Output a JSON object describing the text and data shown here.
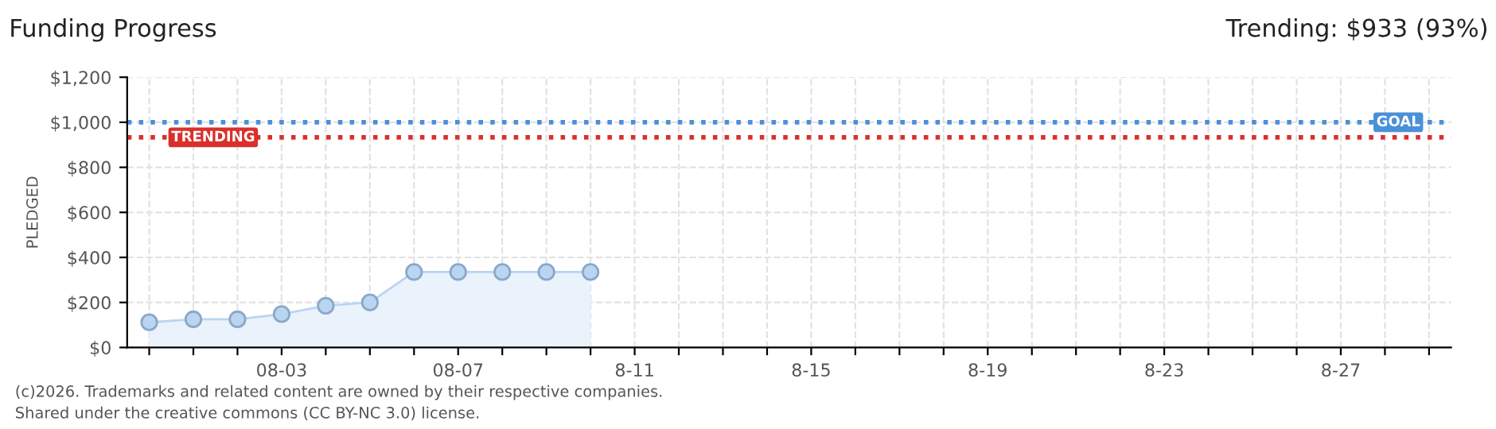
{
  "chart_data": {
    "type": "area",
    "title": "Funding Progress",
    "subtitle": "Trending: $933 (93%)",
    "ylabel": "PLEDGED",
    "categories": [
      null,
      null,
      null,
      "08-03",
      null,
      null,
      null,
      "08-07",
      null,
      null,
      null,
      "8-11",
      null,
      null,
      null,
      "8-15",
      null,
      null,
      null,
      "8-19",
      null,
      null,
      null,
      "8-23",
      null,
      null,
      null,
      "8-27",
      null,
      null
    ],
    "series": [
      {
        "color": "#b9d5f2",
        "values": [
          112,
          125,
          125,
          148,
          185,
          200,
          335,
          335,
          335,
          335,
          335,
          null,
          null,
          null,
          null,
          null,
          null,
          null,
          null,
          null,
          null,
          null,
          null,
          null,
          null,
          null,
          null,
          null,
          null,
          null
        ]
      }
    ],
    "ylim": [
      0,
      1200
    ],
    "yticks": [
      {
        "value": 0,
        "label": "$0"
      },
      {
        "value": 200,
        "label": "$200"
      },
      {
        "value": 400,
        "label": "$400"
      },
      {
        "value": 600,
        "label": "$600"
      },
      {
        "value": 800,
        "label": "$800"
      },
      {
        "value": 1000,
        "label": "$1,000"
      },
      {
        "value": 1200,
        "label": "$1,200"
      }
    ],
    "ref_lines": [
      {
        "axis": "y",
        "value": 1000,
        "label": "GOAL",
        "color": "#4a90d9",
        "line_style": "dotted"
      },
      {
        "axis": "y",
        "value": 933,
        "label": "TRENDING",
        "color": "#d9302c",
        "line_style": "dotted"
      }
    ],
    "grid": true,
    "marker": "circle",
    "annotations": [
      "(c)2026. Trademarks and related content are owned by their respective companies.",
      "Shared under the creative commons (CC BY-NC 3.0) license."
    ]
  }
}
